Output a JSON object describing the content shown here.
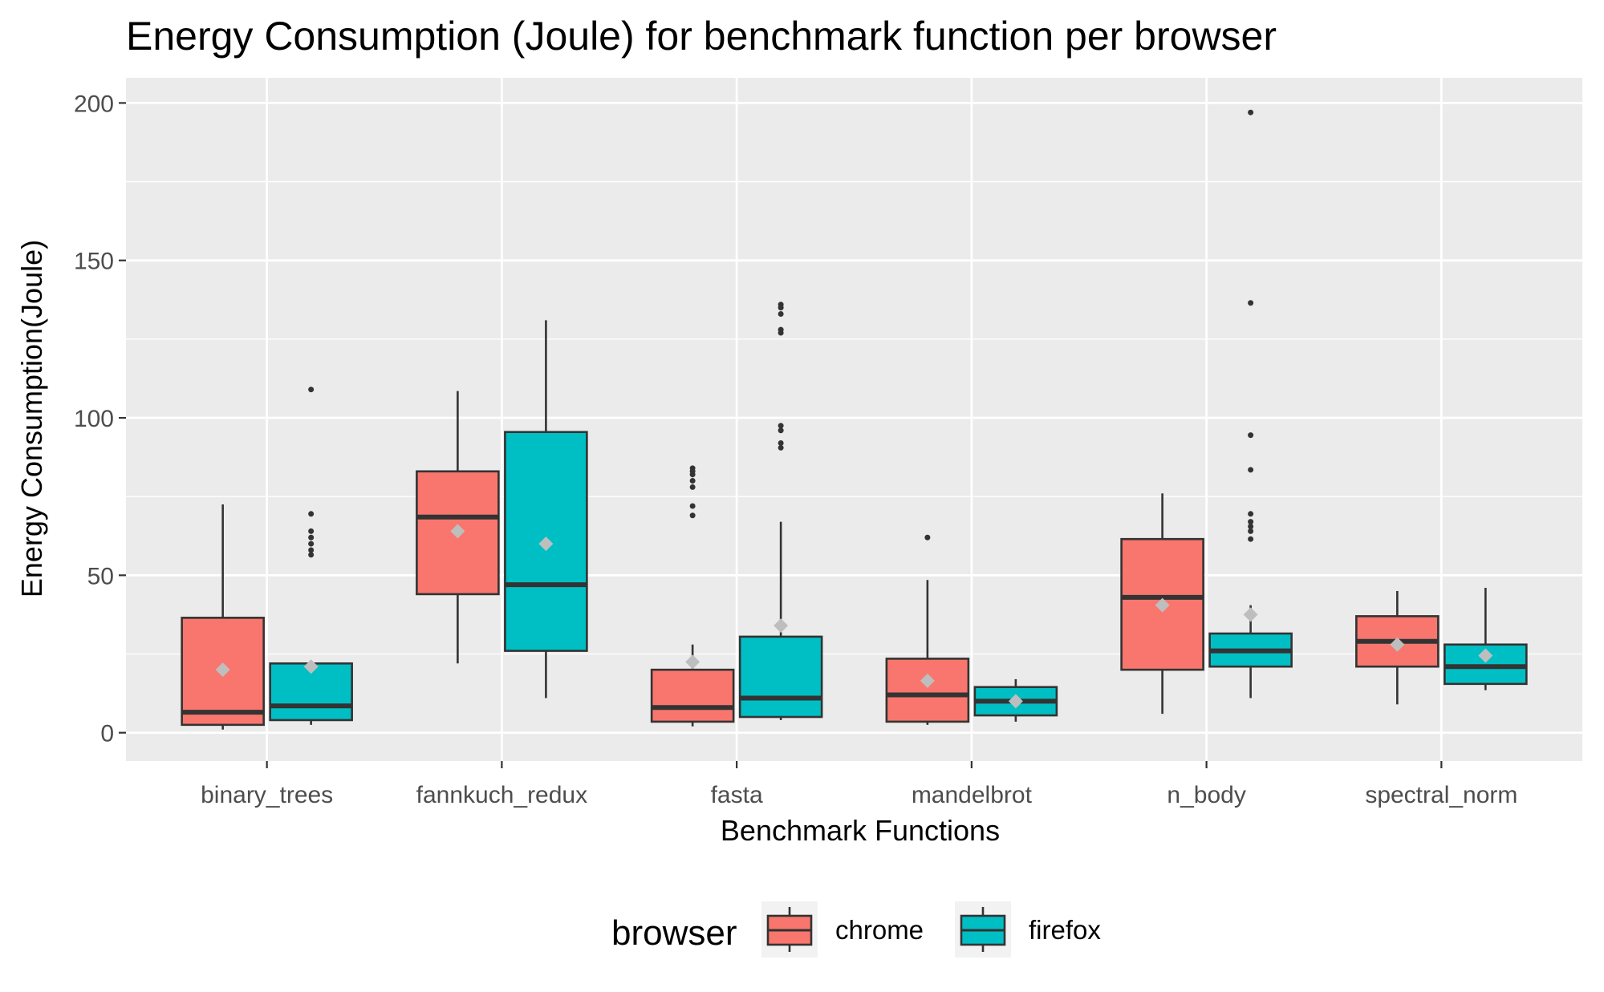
{
  "chart_data": {
    "type": "box",
    "title": "Energy Consumption (Joule) for benchmark function per browser",
    "xlabel": "Benchmark Functions",
    "ylabel": "Energy Consumption(Joule)",
    "ylim": [
      -9,
      208
    ],
    "yticks": [
      0,
      50,
      100,
      150,
      200
    ],
    "grid": true,
    "legend": {
      "title": "browser",
      "position": "bottom"
    },
    "categories": [
      "binary_trees",
      "fannkuch_redux",
      "fasta",
      "mandelbrot",
      "n_body",
      "spectral_norm"
    ],
    "series": [
      {
        "name": "chrome",
        "color": "#F8766D",
        "boxes": [
          {
            "whisker_low": 1,
            "q1": 2.5,
            "median": 6.5,
            "q3": 36.5,
            "whisker_high": 72.5,
            "mean": 20,
            "outliers": []
          },
          {
            "whisker_low": 22,
            "q1": 44,
            "median": 68.5,
            "q3": 83,
            "whisker_high": 108.5,
            "mean": 64,
            "outliers": []
          },
          {
            "whisker_low": 2,
            "q1": 3.5,
            "median": 8,
            "q3": 20,
            "whisker_high": 28,
            "mean": 22.5,
            "outliers": [
              69,
              72,
              78,
              80,
              82,
              83,
              84
            ]
          },
          {
            "whisker_low": 2.5,
            "q1": 3.5,
            "median": 12,
            "q3": 23.5,
            "whisker_high": 48.5,
            "mean": 16.5,
            "outliers": [
              62
            ]
          },
          {
            "whisker_low": 6,
            "q1": 20,
            "median": 43,
            "q3": 61.5,
            "whisker_high": 76,
            "mean": 40.5,
            "outliers": []
          },
          {
            "whisker_low": 9,
            "q1": 21,
            "median": 29,
            "q3": 37,
            "whisker_high": 45,
            "mean": 28,
            "outliers": []
          }
        ]
      },
      {
        "name": "firefox",
        "color": "#00BFC4",
        "boxes": [
          {
            "whisker_low": 2.5,
            "q1": 4,
            "median": 8.5,
            "q3": 22,
            "whisker_high": 23,
            "mean": 21,
            "outliers": [
              56.5,
              58,
              60,
              62,
              64,
              69.5,
              109
            ]
          },
          {
            "whisker_low": 11,
            "q1": 26,
            "median": 47,
            "q3": 95.5,
            "whisker_high": 131,
            "mean": 60,
            "outliers": []
          },
          {
            "whisker_low": 4,
            "q1": 5,
            "median": 11,
            "q3": 30.5,
            "whisker_high": 67,
            "mean": 34,
            "outliers": [
              90.5,
              92,
              96,
              97.5,
              127,
              128,
              133,
              135,
              136
            ]
          },
          {
            "whisker_low": 3.5,
            "q1": 5.5,
            "median": 10,
            "q3": 14.5,
            "whisker_high": 17,
            "mean": 10,
            "outliers": []
          },
          {
            "whisker_low": 11,
            "q1": 21,
            "median": 26,
            "q3": 31.5,
            "whisker_high": 40.5,
            "mean": 37.5,
            "outliers": [
              61.5,
              64,
              65.5,
              67,
              69.5,
              83.5,
              94.5,
              136.5,
              197
            ]
          },
          {
            "whisker_low": 13.5,
            "q1": 15.5,
            "median": 21,
            "q3": 28,
            "whisker_high": 46,
            "mean": 24.5,
            "outliers": []
          }
        ]
      }
    ]
  }
}
